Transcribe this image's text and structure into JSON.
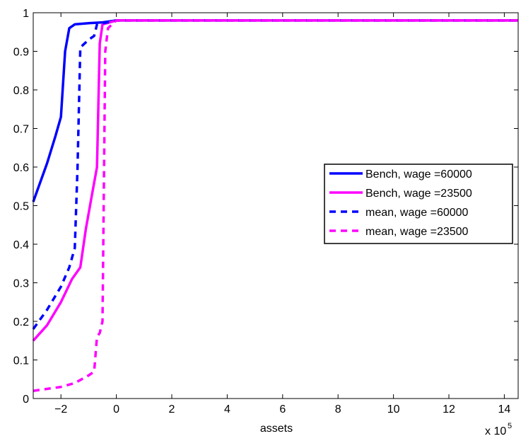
{
  "chart_data": {
    "type": "line",
    "xlabel": "assets",
    "x_multiplier_label": "x 10",
    "x_multiplier_exponent": "5",
    "xlim": [
      -3,
      14.5
    ],
    "ylim": [
      0,
      1
    ],
    "x_ticks": [
      {
        "value": -2,
        "label": "−2"
      },
      {
        "value": 0,
        "label": "0"
      },
      {
        "value": 2,
        "label": "2"
      },
      {
        "value": 4,
        "label": "4"
      },
      {
        "value": 6,
        "label": "6"
      },
      {
        "value": 8,
        "label": "8"
      },
      {
        "value": 10,
        "label": "10"
      },
      {
        "value": 12,
        "label": "12"
      },
      {
        "value": 14,
        "label": "14"
      }
    ],
    "y_ticks": [
      {
        "value": 0,
        "label": "0"
      },
      {
        "value": 0.1,
        "label": "0.1"
      },
      {
        "value": 0.2,
        "label": "0.2"
      },
      {
        "value": 0.3,
        "label": "0.3"
      },
      {
        "value": 0.4,
        "label": "0.4"
      },
      {
        "value": 0.5,
        "label": "0.5"
      },
      {
        "value": 0.6,
        "label": "0.6"
      },
      {
        "value": 0.7,
        "label": "0.7"
      },
      {
        "value": 0.8,
        "label": "0.8"
      },
      {
        "value": 0.9,
        "label": "0.9"
      },
      {
        "value": 1,
        "label": "1"
      }
    ],
    "grid": false,
    "legend_position": "right",
    "series": [
      {
        "name": "Bench, wage =60000",
        "color": "#0000ff",
        "dash": "solid",
        "points": [
          [
            -3,
            0.51
          ],
          [
            -2.5,
            0.61
          ],
          [
            -2.2,
            0.68
          ],
          [
            -2.0,
            0.73
          ],
          [
            -1.85,
            0.9
          ],
          [
            -1.7,
            0.96
          ],
          [
            -1.5,
            0.97
          ],
          [
            -1.0,
            0.973
          ],
          [
            -0.5,
            0.975
          ],
          [
            0,
            0.98
          ],
          [
            14.5,
            0.98
          ]
        ]
      },
      {
        "name": "Bench, wage =23500",
        "color": "#ff00ff",
        "dash": "solid",
        "points": [
          [
            -3,
            0.15
          ],
          [
            -2.5,
            0.19
          ],
          [
            -2.0,
            0.25
          ],
          [
            -1.6,
            0.31
          ],
          [
            -1.3,
            0.34
          ],
          [
            -1.1,
            0.44
          ],
          [
            -0.9,
            0.52
          ],
          [
            -0.7,
            0.6
          ],
          [
            -0.6,
            0.92
          ],
          [
            -0.5,
            0.97
          ],
          [
            0,
            0.98
          ],
          [
            14.5,
            0.98
          ]
        ]
      },
      {
        "name": "mean, wage =60000",
        "color": "#0000ff",
        "dash": "dashed",
        "points": [
          [
            -3,
            0.18
          ],
          [
            -2.5,
            0.23
          ],
          [
            -2.0,
            0.29
          ],
          [
            -1.7,
            0.34
          ],
          [
            -1.5,
            0.39
          ],
          [
            -1.4,
            0.6
          ],
          [
            -1.3,
            0.91
          ],
          [
            -1.0,
            0.93
          ],
          [
            -0.8,
            0.94
          ],
          [
            -0.7,
            0.97
          ],
          [
            0,
            0.98
          ],
          [
            14.5,
            0.98
          ]
        ]
      },
      {
        "name": "mean, wage =23500",
        "color": "#ff00ff",
        "dash": "dashed",
        "points": [
          [
            -3,
            0.02
          ],
          [
            -2.5,
            0.025
          ],
          [
            -2.0,
            0.03
          ],
          [
            -1.5,
            0.04
          ],
          [
            -1.0,
            0.06
          ],
          [
            -0.8,
            0.07
          ],
          [
            -0.7,
            0.16
          ],
          [
            -0.6,
            0.17
          ],
          [
            -0.5,
            0.2
          ],
          [
            -0.4,
            0.9
          ],
          [
            -0.3,
            0.96
          ],
          [
            0,
            0.98
          ],
          [
            14.5,
            0.98
          ]
        ]
      }
    ]
  }
}
